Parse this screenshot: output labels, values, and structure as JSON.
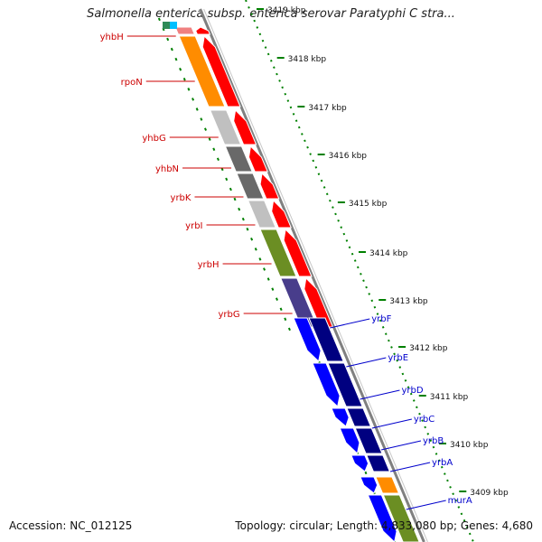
{
  "title": "Salmonella enterica subsp. enterica serovar Paratyphi C stra...",
  "footer": {
    "accession": "Accession: NC_012125",
    "topology": "Topology: circular; Length: 4,833,080 bp; Genes: 4,680"
  },
  "ticks": [
    "3419 kbp",
    "3418 kbp",
    "3417 kbp",
    "3416 kbp",
    "3415 kbp",
    "3414 kbp",
    "3413 kbp",
    "3412 kbp",
    "3411 kbp",
    "3410 kbp",
    "3409 kbp"
  ],
  "genes_reverse": [
    {
      "name": "yhbH",
      "color": "#f08080"
    },
    {
      "name": "rpoN",
      "color": "#ff8c00"
    },
    {
      "name": "yhbG",
      "color": "#c0c0c0"
    },
    {
      "name": "yhbN",
      "color": "#696969"
    },
    {
      "name": "yrbK",
      "color": "#696969"
    },
    {
      "name": "yrbI",
      "color": "#c0c0c0"
    },
    {
      "name": "yrbH",
      "color": "#6b8e23"
    },
    {
      "name": "yrbG",
      "color": "#483d8b"
    }
  ],
  "genes_forward": [
    {
      "name": "yrbF",
      "color": "#000080"
    },
    {
      "name": "yrbE",
      "color": "#000080"
    },
    {
      "name": "yrbD",
      "color": "#000080"
    },
    {
      "name": "yrbC",
      "color": "#000080"
    },
    {
      "name": "yrbB",
      "color": "#000080"
    },
    {
      "name": "yrbA",
      "color": "#ff8c00"
    },
    {
      "name": "murA",
      "color": "#6b8e23"
    }
  ],
  "colors": {
    "reverse_label": "#cc0000",
    "forward_label": "#0000cc",
    "reverse_arrow": "#ff0000",
    "forward_arrow": "#0000ff",
    "backbone": "#808080",
    "ruler_dots": "#008000"
  }
}
